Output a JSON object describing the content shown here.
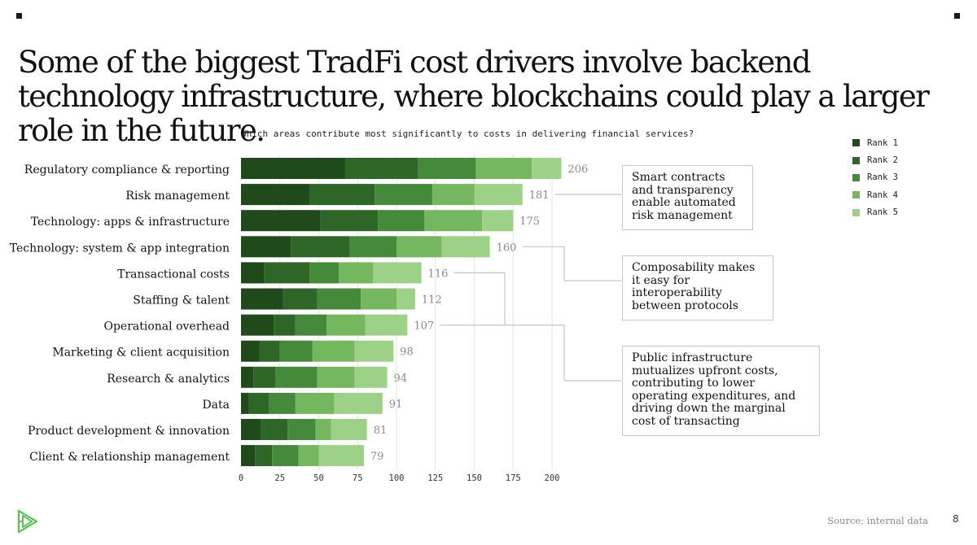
{
  "title": "Some of the biggest TradFi cost drivers involve backend technology infrastructure, where blockchains could play a larger role in the future.",
  "footer": {
    "source": "Source: internal data",
    "page_number": "8"
  },
  "logo": {
    "icon": "play-triangle-logo-icon",
    "color": "#5cc35a"
  },
  "chart_data": {
    "type": "bar",
    "orientation": "horizontal",
    "stacked": true,
    "subtitle": "Which areas contribute most significantly to costs in delivering financial services?",
    "categories": [
      "Regulatory compliance & reporting",
      "Risk management",
      "Technology: apps & infrastructure",
      "Technology: system & app integration",
      "Transactional costs",
      "Staffing & talent",
      "Operational overhead",
      "Marketing & client acquisition",
      "Research & analytics",
      "Data",
      "Product development & innovation",
      "Client & relationship management"
    ],
    "series": [
      {
        "name": "Rank 1",
        "color": "#1f4a1a",
        "values": [
          67,
          44,
          51,
          32,
          15,
          27,
          21,
          12,
          8,
          5,
          13,
          9
        ]
      },
      {
        "name": "Rank 2",
        "color": "#2e6627",
        "values": [
          47,
          42,
          37,
          38,
          29,
          22,
          14,
          13,
          14,
          13,
          17,
          11
        ]
      },
      {
        "name": "Rank 3",
        "color": "#458a3a",
        "values": [
          37,
          37,
          30,
          30,
          19,
          28,
          20,
          21,
          27,
          17,
          18,
          17
        ]
      },
      {
        "name": "Rank 4",
        "color": "#75b75f",
        "values": [
          36,
          27,
          37,
          29,
          22,
          23,
          25,
          27,
          24,
          25,
          10,
          13
        ]
      },
      {
        "name": "Rank 5",
        "color": "#9ed188",
        "values": [
          19,
          31,
          20,
          31,
          31,
          12,
          27,
          25,
          21,
          31,
          23,
          29
        ]
      }
    ],
    "totals": [
      206,
      181,
      175,
      160,
      116,
      112,
      107,
      98,
      94,
      91,
      81,
      79
    ],
    "x_ticks": [
      0,
      25,
      50,
      75,
      100,
      125,
      150,
      175,
      200
    ],
    "xlim": [
      0,
      206
    ],
    "grid": "vertical",
    "legend_position": "right",
    "annotations": [
      {
        "text": "Smart contracts and transparency enable automated risk management",
        "targets": [
          "Risk management"
        ]
      },
      {
        "text": "Composability makes it easy for interoperability between protocols",
        "targets": [
          "Technology: system & app integration"
        ]
      },
      {
        "text": "Public infrastructure mutualizes upfront costs, contributing to lower operating expenditures, and driving down the marginal cost of transacting",
        "targets": [
          "Transactional costs",
          "Operational overhead"
        ]
      }
    ]
  }
}
